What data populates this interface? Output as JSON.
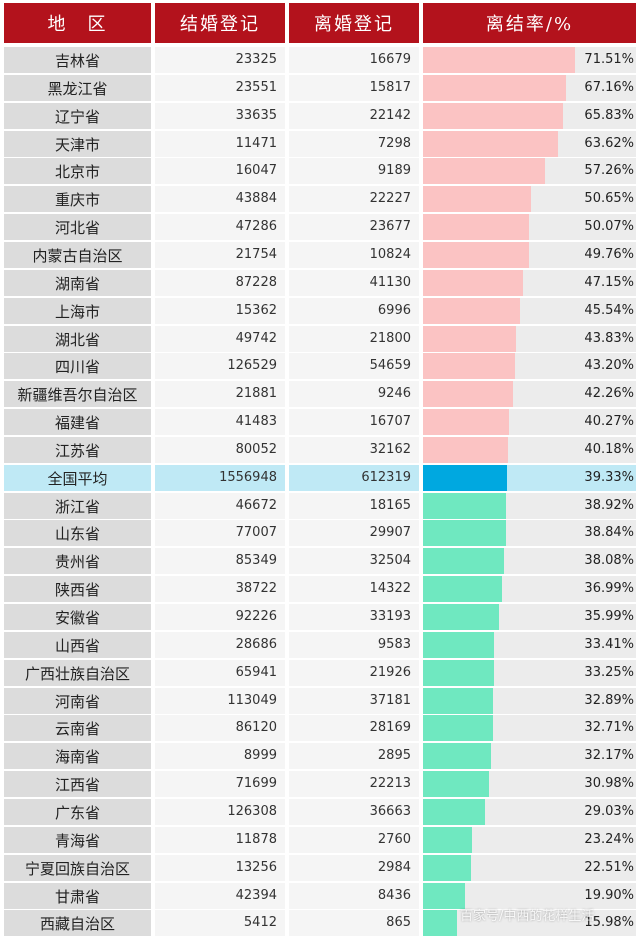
{
  "headers": [
    "地　区",
    "结婚登记",
    "离婚登记",
    "离结率/%"
  ],
  "colors": {
    "header_bg": "#b3121c",
    "above_avg_bar": "#fbc3c3",
    "average_bar": "#00a8e0",
    "below_avg_bar": "#6fe8c0"
  },
  "chart_data": {
    "type": "table",
    "columns": [
      "地　区",
      "结婚登记",
      "离婚登记",
      "离结率/%"
    ],
    "rows": [
      {
        "region": "吉林省",
        "marriage": "23325",
        "divorce": "16679",
        "rate": 71.51,
        "rate_label": "71.51%"
      },
      {
        "region": "黑龙江省",
        "marriage": "23551",
        "divorce": "15817",
        "rate": 67.16,
        "rate_label": "67.16%"
      },
      {
        "region": "辽宁省",
        "marriage": "33635",
        "divorce": "22142",
        "rate": 65.83,
        "rate_label": "65.83%"
      },
      {
        "region": "天津市",
        "marriage": "11471",
        "divorce": "7298",
        "rate": 63.62,
        "rate_label": "63.62%"
      },
      {
        "region": "北京市",
        "marriage": "16047",
        "divorce": "9189",
        "rate": 57.26,
        "rate_label": "57.26%"
      },
      {
        "region": "重庆市",
        "marriage": "43884",
        "divorce": "22227",
        "rate": 50.65,
        "rate_label": "50.65%"
      },
      {
        "region": "河北省",
        "marriage": "47286",
        "divorce": "23677",
        "rate": 50.07,
        "rate_label": "50.07%"
      },
      {
        "region": "内蒙古自治区",
        "marriage": "21754",
        "divorce": "10824",
        "rate": 49.76,
        "rate_label": "49.76%"
      },
      {
        "region": "湖南省",
        "marriage": "87228",
        "divorce": "41130",
        "rate": 47.15,
        "rate_label": "47.15%"
      },
      {
        "region": "上海市",
        "marriage": "15362",
        "divorce": "6996",
        "rate": 45.54,
        "rate_label": "45.54%"
      },
      {
        "region": "湖北省",
        "marriage": "49742",
        "divorce": "21800",
        "rate": 43.83,
        "rate_label": "43.83%"
      },
      {
        "region": "四川省",
        "marriage": "126529",
        "divorce": "54659",
        "rate": 43.2,
        "rate_label": "43.20%"
      },
      {
        "region": "新疆维吾尔自治区",
        "marriage": "21881",
        "divorce": "9246",
        "rate": 42.26,
        "rate_label": "42.26%"
      },
      {
        "region": "福建省",
        "marriage": "41483",
        "divorce": "16707",
        "rate": 40.27,
        "rate_label": "40.27%"
      },
      {
        "region": "江苏省",
        "marriage": "80052",
        "divorce": "32162",
        "rate": 40.18,
        "rate_label": "40.18%"
      },
      {
        "region": "全国平均",
        "marriage": "1556948",
        "divorce": "612319",
        "rate": 39.33,
        "rate_label": "39.33%",
        "average": true
      },
      {
        "region": "浙江省",
        "marriage": "46672",
        "divorce": "18165",
        "rate": 38.92,
        "rate_label": "38.92%"
      },
      {
        "region": "山东省",
        "marriage": "77007",
        "divorce": "29907",
        "rate": 38.84,
        "rate_label": "38.84%"
      },
      {
        "region": "贵州省",
        "marriage": "85349",
        "divorce": "32504",
        "rate": 38.08,
        "rate_label": "38.08%"
      },
      {
        "region": "陕西省",
        "marriage": "38722",
        "divorce": "14322",
        "rate": 36.99,
        "rate_label": "36.99%"
      },
      {
        "region": "安徽省",
        "marriage": "92226",
        "divorce": "33193",
        "rate": 35.99,
        "rate_label": "35.99%"
      },
      {
        "region": "山西省",
        "marriage": "28686",
        "divorce": "9583",
        "rate": 33.41,
        "rate_label": "33.41%"
      },
      {
        "region": "广西壮族自治区",
        "marriage": "65941",
        "divorce": "21926",
        "rate": 33.25,
        "rate_label": "33.25%"
      },
      {
        "region": "河南省",
        "marriage": "113049",
        "divorce": "37181",
        "rate": 32.89,
        "rate_label": "32.89%"
      },
      {
        "region": "云南省",
        "marriage": "86120",
        "divorce": "28169",
        "rate": 32.71,
        "rate_label": "32.71%"
      },
      {
        "region": "海南省",
        "marriage": "8999",
        "divorce": "2895",
        "rate": 32.17,
        "rate_label": "32.17%"
      },
      {
        "region": "江西省",
        "marriage": "71699",
        "divorce": "22213",
        "rate": 30.98,
        "rate_label": "30.98%"
      },
      {
        "region": "广东省",
        "marriage": "126308",
        "divorce": "36663",
        "rate": 29.03,
        "rate_label": "29.03%"
      },
      {
        "region": "青海省",
        "marriage": "11878",
        "divorce": "2760",
        "rate": 23.24,
        "rate_label": "23.24%"
      },
      {
        "region": "宁夏回族自治区",
        "marriage": "13256",
        "divorce": "2984",
        "rate": 22.51,
        "rate_label": "22.51%"
      },
      {
        "region": "甘肃省",
        "marriage": "42394",
        "divorce": "8436",
        "rate": 19.9,
        "rate_label": "19.90%"
      },
      {
        "region": "西藏自治区",
        "marriage": "5412",
        "divorce": "865",
        "rate": 15.98,
        "rate_label": "15.98%"
      }
    ]
  },
  "watermark": "百家号/中西的花样生活"
}
